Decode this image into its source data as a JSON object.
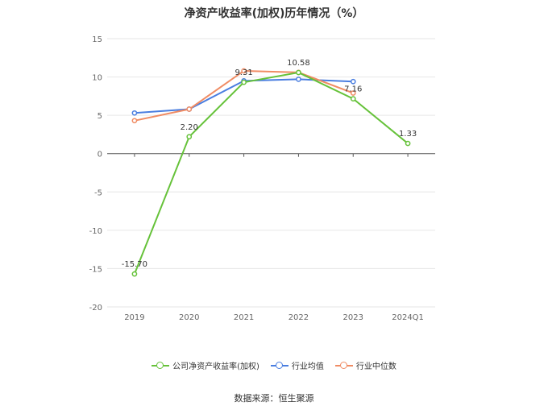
{
  "chart_data": {
    "type": "line",
    "title": "净资产收益率(加权)历年情况（%）",
    "categories": [
      "2019",
      "2020",
      "2021",
      "2022",
      "2023",
      "2024Q1"
    ],
    "ylim": [
      -20,
      15
    ],
    "yticks": [
      15,
      10,
      5,
      0,
      -5,
      -10,
      -15,
      -20
    ],
    "grid": true,
    "legend_position": "bottom",
    "series": [
      {
        "name": "公司净资产收益率(加权)",
        "color": "#66c23a",
        "values": [
          -15.7,
          2.2,
          9.31,
          10.58,
          7.16,
          1.33
        ],
        "labels": [
          "-15.70",
          "2.20",
          "9.31",
          "10.58",
          "7.16",
          "1.33"
        ]
      },
      {
        "name": "行业均值",
        "color": "#4a7ee0",
        "values": [
          5.3,
          5.8,
          9.5,
          9.7,
          9.4,
          null
        ]
      },
      {
        "name": "行业中位数",
        "color": "#f08c64",
        "values": [
          4.3,
          5.8,
          10.8,
          10.6,
          7.9,
          null
        ]
      }
    ]
  },
  "source": "数据来源：恒生聚源"
}
